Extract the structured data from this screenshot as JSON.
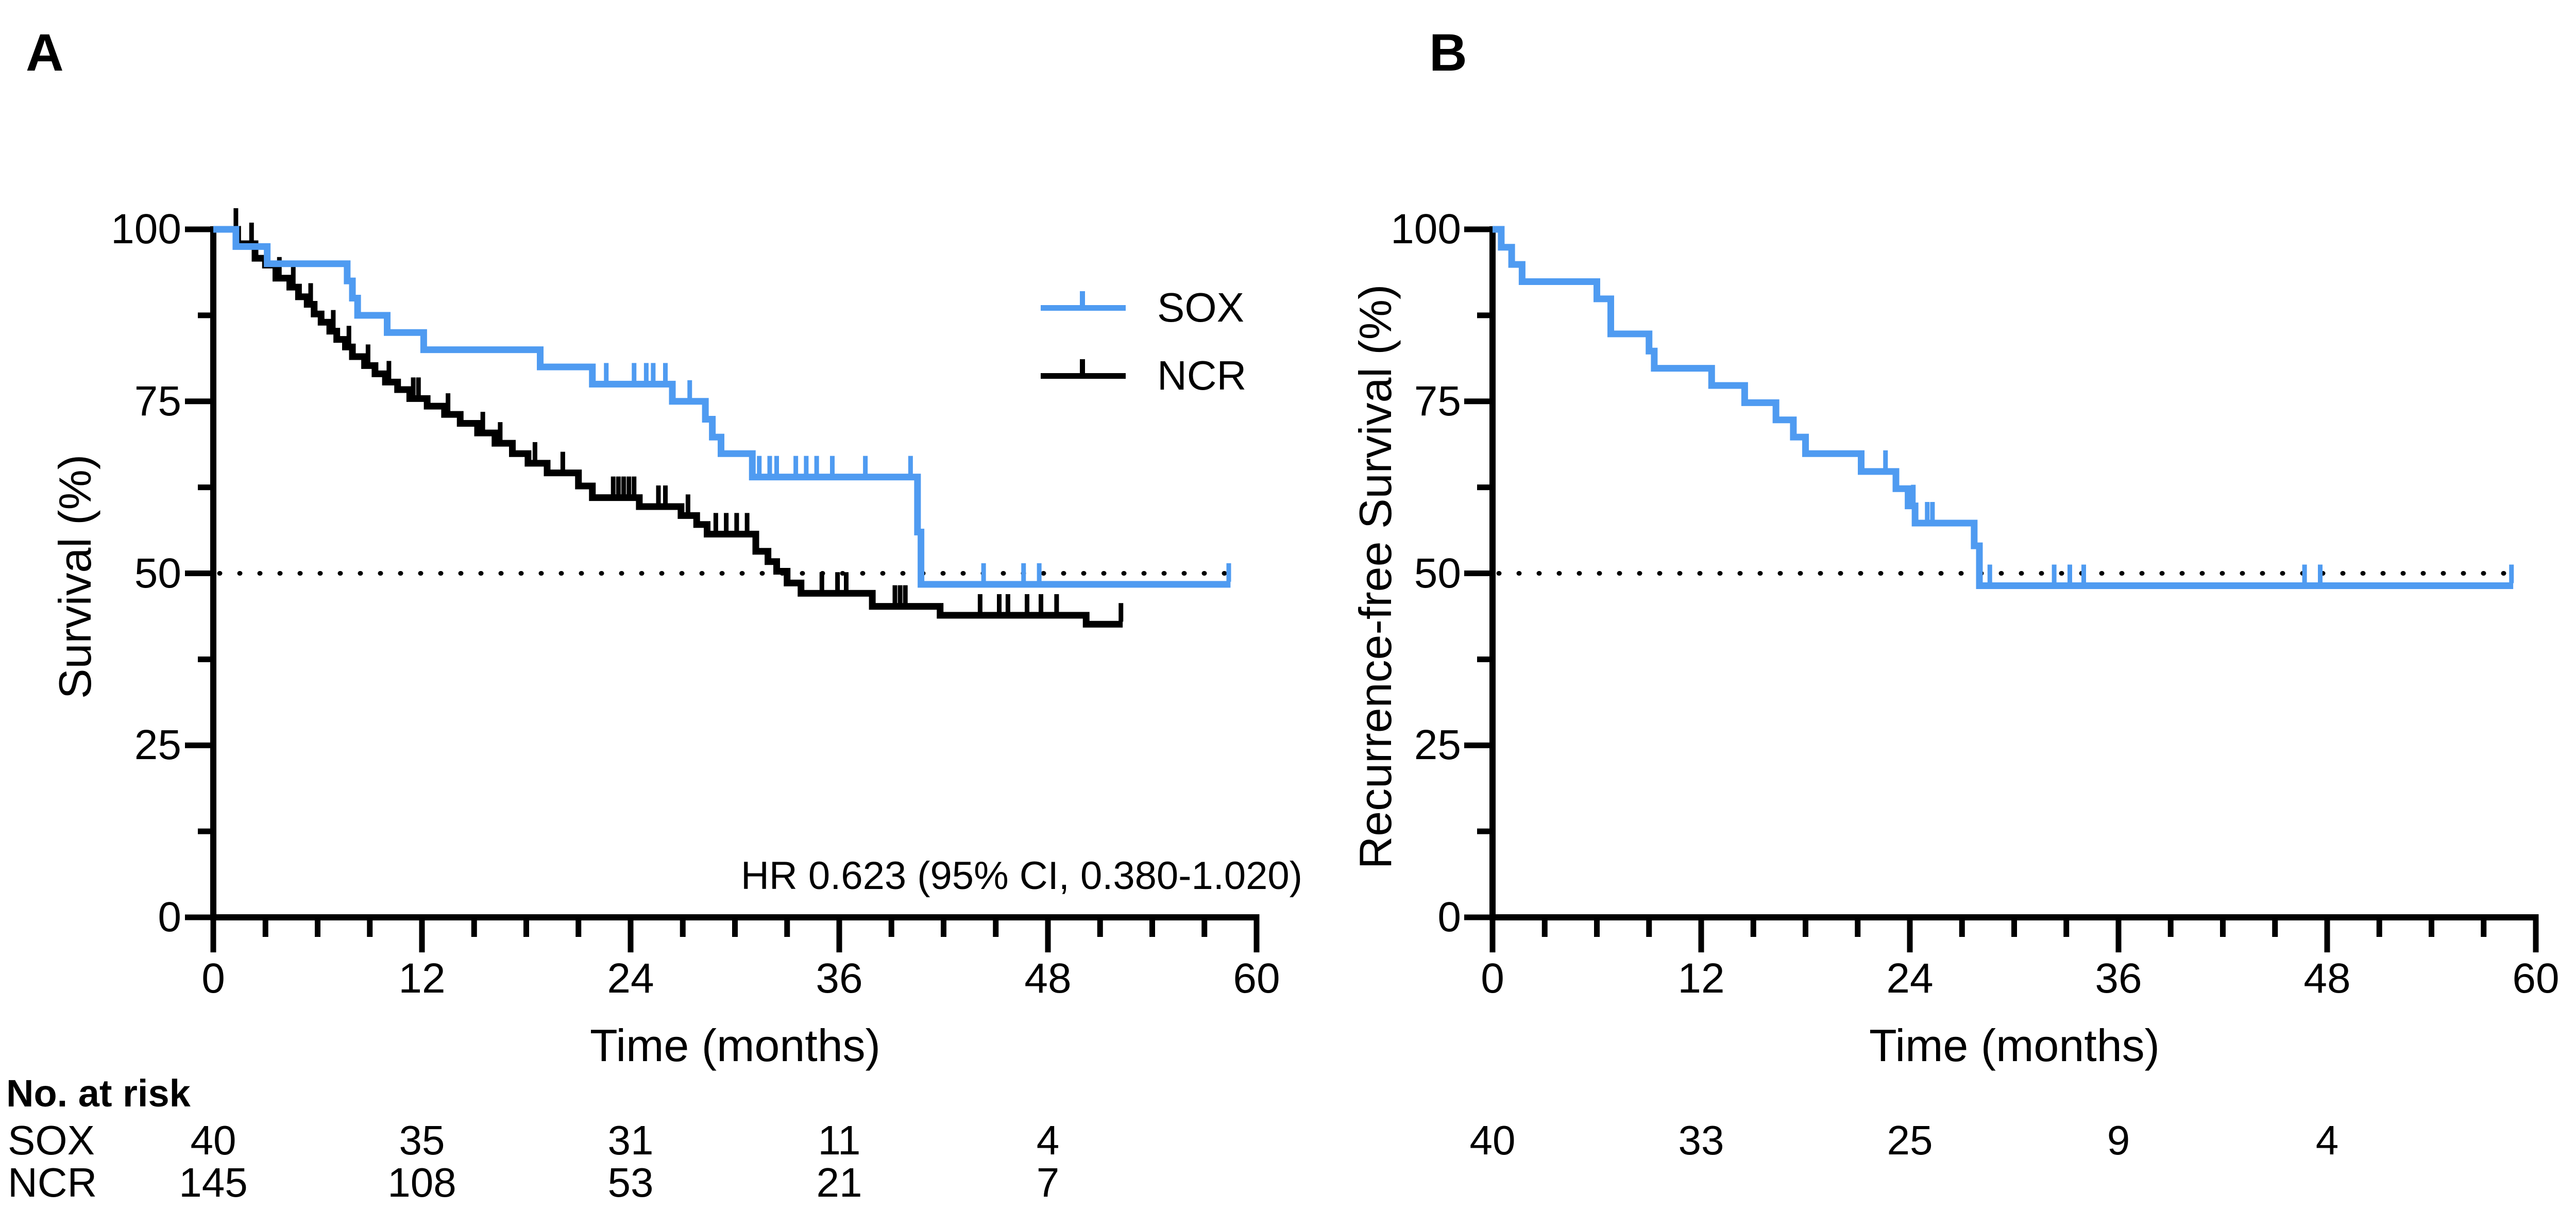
{
  "figure_type": "kaplan-meier-two-panel",
  "colors": {
    "sox_blue": "#4F9BF1",
    "ncr_black": "#000000",
    "background": "#FFFFFF",
    "refline": "#000000"
  },
  "risk_header": "No. at risk",
  "chart_data": [
    {
      "type": "line",
      "km": true,
      "panel_label": "A",
      "xlabel": "Time (months)",
      "ylabel": "Survival (%)",
      "xlim": [
        0,
        60
      ],
      "ylim": [
        0,
        100
      ],
      "xticks": [
        0,
        12,
        24,
        36,
        48,
        60
      ],
      "yticks": [
        0,
        25,
        50,
        75,
        100
      ],
      "minor_xticks_every": 3,
      "minor_yticks": [
        12.5,
        37.5,
        62.5,
        87.5
      ],
      "grid": false,
      "refline_y": 50,
      "annotation": "HR 0.623  (95% CI, 0.380-1.020)",
      "legend_position": "top-right",
      "series": [
        {
          "name": "NCR",
          "color": "#000000",
          "steps": [
            [
              0,
              100
            ],
            [
              1.4,
              97.9
            ],
            [
              2.4,
              95.8
            ],
            [
              3.0,
              94.8
            ],
            [
              3.6,
              92.9
            ],
            [
              4.4,
              91.6
            ],
            [
              4.9,
              90.2
            ],
            [
              5.4,
              89.1
            ],
            [
              5.8,
              87.7
            ],
            [
              6.2,
              86.5
            ],
            [
              6.7,
              85.2
            ],
            [
              7.1,
              84.0
            ],
            [
              7.6,
              82.9
            ],
            [
              8.0,
              81.5
            ],
            [
              8.7,
              80.2
            ],
            [
              9.3,
              79.0
            ],
            [
              9.9,
              77.8
            ],
            [
              10.6,
              76.7
            ],
            [
              11.3,
              75.4
            ],
            [
              12.3,
              74.3
            ],
            [
              13.3,
              73.1
            ],
            [
              14.2,
              71.8
            ],
            [
              15.2,
              70.4
            ],
            [
              16.2,
              68.9
            ],
            [
              17.2,
              67.4
            ],
            [
              18.1,
              66.0
            ],
            [
              19.2,
              64.6
            ],
            [
              21.0,
              62.7
            ],
            [
              21.8,
              61.0
            ],
            [
              24.5,
              59.7
            ],
            [
              26.9,
              58.4
            ],
            [
              27.8,
              57.1
            ],
            [
              28.4,
              55.7
            ],
            [
              31.2,
              53.2
            ],
            [
              31.9,
              51.7
            ],
            [
              32.4,
              50.3
            ],
            [
              33.0,
              48.6
            ],
            [
              33.8,
              47.1
            ],
            [
              37.9,
              45.2
            ],
            [
              41.8,
              43.9
            ],
            [
              50.2,
              42.6
            ]
          ],
          "end_time": 52.3,
          "censors": [
            [
              1.3,
              100
            ],
            [
              2.2,
              97.9
            ],
            [
              3.8,
              92.9
            ],
            [
              4.6,
              91.6
            ],
            [
              5.6,
              89.1
            ],
            [
              6.9,
              85.2
            ],
            [
              7.8,
              82.9
            ],
            [
              8.9,
              80.2
            ],
            [
              10.1,
              77.8
            ],
            [
              11.5,
              75.4
            ],
            [
              11.8,
              75.4
            ],
            [
              13.5,
              73.1
            ],
            [
              15.5,
              70.4
            ],
            [
              16.5,
              68.9
            ],
            [
              18.5,
              66.0
            ],
            [
              20.1,
              64.6
            ],
            [
              23.0,
              61.0
            ],
            [
              23.3,
              61.0
            ],
            [
              23.6,
              61.0
            ],
            [
              23.9,
              61.0
            ],
            [
              24.2,
              61.0
            ],
            [
              25.6,
              59.7
            ],
            [
              26.0,
              59.7
            ],
            [
              27.3,
              58.4
            ],
            [
              28.9,
              55.7
            ],
            [
              29.5,
              55.7
            ],
            [
              30.1,
              55.7
            ],
            [
              30.7,
              55.7
            ],
            [
              35.0,
              47.1
            ],
            [
              35.9,
              47.1
            ],
            [
              36.4,
              47.1
            ],
            [
              39.2,
              45.2
            ],
            [
              39.5,
              45.2
            ],
            [
              39.8,
              45.2
            ],
            [
              44.1,
              43.9
            ],
            [
              45.2,
              43.9
            ],
            [
              45.7,
              43.9
            ],
            [
              46.8,
              43.9
            ],
            [
              47.6,
              43.9
            ],
            [
              48.5,
              43.9
            ],
            [
              52.2,
              42.6
            ]
          ]
        },
        {
          "name": "SOX",
          "color": "#4F9BF1",
          "steps": [
            [
              0,
              100
            ],
            [
              1.3,
              97.5
            ],
            [
              3.1,
              95.0
            ],
            [
              7.7,
              92.5
            ],
            [
              8.0,
              90.0
            ],
            [
              8.3,
              87.5
            ],
            [
              10.0,
              85.0
            ],
            [
              12.1,
              82.5
            ],
            [
              18.8,
              80.0
            ],
            [
              21.8,
              77.5
            ],
            [
              26.4,
              75.0
            ],
            [
              28.3,
              72.4
            ],
            [
              28.7,
              69.8
            ],
            [
              29.2,
              67.4
            ],
            [
              31.0,
              64.0
            ],
            [
              40.5,
              56.0
            ],
            [
              40.7,
              48.4
            ]
          ],
          "end_time": 58.5,
          "censors": [
            [
              22.6,
              77.5
            ],
            [
              24.2,
              77.5
            ],
            [
              24.9,
              77.5
            ],
            [
              25.3,
              77.5
            ],
            [
              26.0,
              77.5
            ],
            [
              27.4,
              75.0
            ],
            [
              31.4,
              64.0
            ],
            [
              32.0,
              64.0
            ],
            [
              32.4,
              64.0
            ],
            [
              33.5,
              64.0
            ],
            [
              34.1,
              64.0
            ],
            [
              34.7,
              64.0
            ],
            [
              35.6,
              64.0
            ],
            [
              37.5,
              64.0
            ],
            [
              40.1,
              64.0
            ],
            [
              44.3,
              48.4
            ],
            [
              46.6,
              48.4
            ],
            [
              47.5,
              48.4
            ],
            [
              58.4,
              48.4
            ]
          ]
        }
      ],
      "legend": [
        {
          "label": "SOX",
          "color": "#4F9BF1"
        },
        {
          "label": "NCR",
          "color": "#000000"
        }
      ],
      "risk_table": {
        "times": [
          0,
          12,
          24,
          36,
          48
        ],
        "rows": [
          {
            "label": "SOX",
            "values": [
              "40",
              "35",
              "31",
              "11",
              "4"
            ]
          },
          {
            "label": "NCR",
            "values": [
              "145",
              "108",
              "53",
              "21",
              "7"
            ]
          }
        ]
      }
    },
    {
      "type": "line",
      "km": true,
      "panel_label": "B",
      "xlabel": "Time (months)",
      "ylabel": "Recurrence-free Survival (%)",
      "xlim": [
        0,
        60
      ],
      "ylim": [
        0,
        100
      ],
      "xticks": [
        0,
        12,
        24,
        36,
        48,
        60
      ],
      "yticks": [
        0,
        25,
        50,
        75,
        100
      ],
      "minor_xticks_every": 3,
      "minor_yticks": [
        12.5,
        37.5,
        62.5,
        87.5
      ],
      "grid": false,
      "refline_y": 50,
      "annotation": "",
      "series": [
        {
          "name": "SOX",
          "color": "#4F9BF1",
          "steps": [
            [
              0,
              100
            ],
            [
              0.5,
              97.4
            ],
            [
              1.1,
              94.9
            ],
            [
              1.7,
              92.4
            ],
            [
              6.0,
              89.9
            ],
            [
              6.8,
              84.8
            ],
            [
              9.0,
              82.3
            ],
            [
              9.3,
              79.8
            ],
            [
              12.6,
              77.3
            ],
            [
              14.5,
              74.8
            ],
            [
              16.3,
              72.3
            ],
            [
              17.3,
              69.8
            ],
            [
              18.0,
              67.4
            ],
            [
              21.2,
              64.8
            ],
            [
              23.2,
              62.3
            ],
            [
              23.9,
              59.8
            ],
            [
              24.3,
              57.3
            ],
            [
              27.7,
              54.0
            ],
            [
              28.0,
              48.2
            ]
          ],
          "end_time": 58.7,
          "censors": [
            [
              22.6,
              64.8
            ],
            [
              24.2,
              59.8
            ],
            [
              25.0,
              57.3
            ],
            [
              25.3,
              57.3
            ],
            [
              28.6,
              48.2
            ],
            [
              32.3,
              48.2
            ],
            [
              33.2,
              48.2
            ],
            [
              34.0,
              48.2
            ],
            [
              46.7,
              48.2
            ],
            [
              47.6,
              48.2
            ],
            [
              58.6,
              48.2
            ]
          ]
        }
      ],
      "risk_table": {
        "times": [
          0,
          12,
          24,
          36,
          48
        ],
        "rows": [
          {
            "label": "",
            "values": [
              "40",
              "33",
              "25",
              "9",
              "4"
            ]
          }
        ]
      }
    }
  ]
}
